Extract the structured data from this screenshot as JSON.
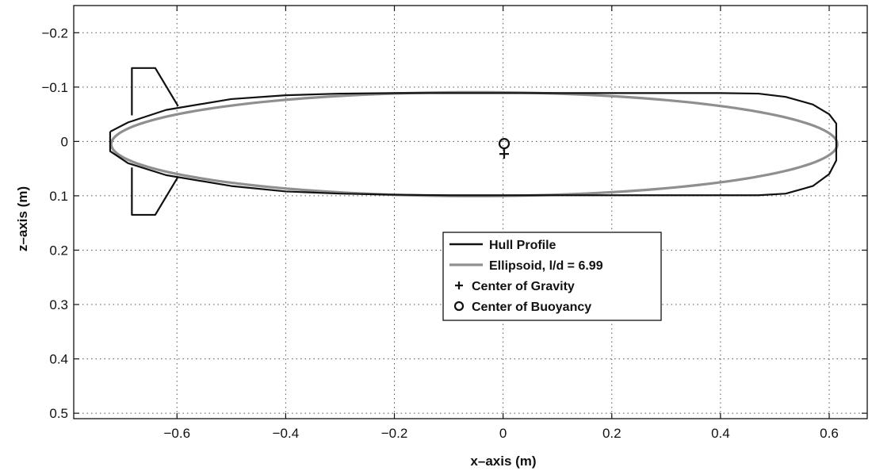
{
  "chart_data": {
    "type": "line",
    "title": "",
    "xlabel": "x–axis (m)",
    "ylabel": "z–axis (m)",
    "xlim": [
      -0.79,
      0.67
    ],
    "ylim": [
      -0.25,
      0.51
    ],
    "y_reversed": true,
    "grid": true,
    "legend_position": "center-right",
    "xticks": [
      -0.6,
      -0.4,
      -0.2,
      0,
      0.2,
      0.4,
      0.6
    ],
    "xtick_labels": [
      "−0.6",
      "−0.4",
      "−0.2",
      "0",
      "0.2",
      "0.4",
      "0.6"
    ],
    "yticks": [
      -0.2,
      -0.1,
      0,
      0.1,
      0.2,
      0.3,
      0.4,
      0.5
    ],
    "ytick_labels": [
      "−0.2",
      "−0.1",
      "0",
      "0.1",
      "0.2",
      "0.3",
      "0.4",
      "0.5"
    ],
    "series": [
      {
        "name": "Hull Profile",
        "color": "#111111",
        "marker": "line",
        "segments": [
          {
            "x": [
              -0.723,
              -0.69,
              -0.62,
              -0.5,
              -0.4,
              -0.3,
              -0.2,
              -0.1,
              0,
              0.1,
              0.2,
              0.3,
              0.4,
              0.47,
              0.52,
              0.57,
              0.6,
              0.613,
              0.613,
              0.6,
              0.57,
              0.52,
              0.47,
              0.4,
              0.3,
              0.2,
              0.1,
              0,
              -0.1,
              -0.2,
              -0.3,
              -0.4,
              -0.5,
              -0.62,
              -0.69,
              -0.723,
              -0.723
            ],
            "y": [
              -0.018,
              -0.035,
              -0.058,
              -0.078,
              -0.085,
              -0.088,
              -0.089,
              -0.089,
              -0.089,
              -0.089,
              -0.089,
              -0.089,
              -0.089,
              -0.088,
              -0.082,
              -0.068,
              -0.05,
              -0.033,
              0.035,
              0.06,
              0.082,
              0.096,
              0.099,
              0.099,
              0.099,
              0.099,
              0.099,
              0.099,
              0.099,
              0.098,
              0.096,
              0.092,
              0.082,
              0.062,
              0.04,
              0.018,
              -0.018
            ]
          },
          {
            "x": [
              -0.683,
              -0.683,
              -0.64,
              -0.598
            ],
            "y": [
              -0.048,
              -0.135,
              -0.135,
              -0.065
            ]
          },
          {
            "x": [
              -0.683,
              -0.683,
              -0.64,
              -0.598
            ],
            "y": [
              0.048,
              0.135,
              0.135,
              0.065
            ]
          }
        ]
      },
      {
        "name": "Ellipsoid, l/d = 6.99",
        "color": "#8f8f8f",
        "marker": "line",
        "ellipse": {
          "cx": -0.053,
          "cz": 0.005,
          "a": 0.668,
          "b": 0.0955
        }
      },
      {
        "name": "Center of Gravity",
        "color": "#111111",
        "marker": "+",
        "points": [
          {
            "x": 0.002,
            "y": 0.023
          }
        ]
      },
      {
        "name": "Center of Buoyancy",
        "color": "#111111",
        "marker": "o",
        "points": [
          {
            "x": 0.002,
            "y": 0.004
          }
        ]
      }
    ]
  }
}
